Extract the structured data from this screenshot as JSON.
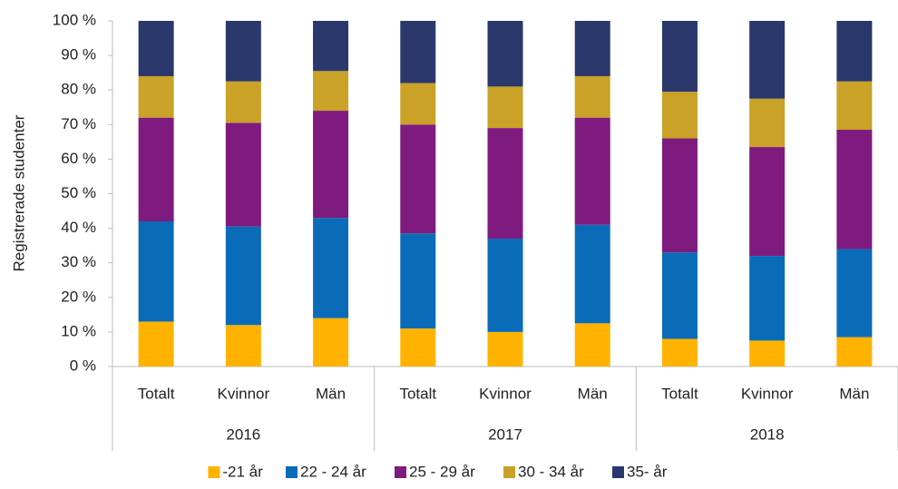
{
  "chart_data": {
    "type": "stacked_bar",
    "ylabel": "Registrerade studenter",
    "categories": [
      "Totalt",
      "Kvinnor",
      "Män",
      "Totalt",
      "Kvinnor",
      "Män",
      "Totalt",
      "Kvinnor",
      "Män"
    ],
    "groups": [
      "2016",
      "2017",
      "2018"
    ],
    "series": [
      {
        "name": "-21 år",
        "color": "#ffb300",
        "values": [
          13,
          12,
          14,
          11,
          10,
          12.5,
          8,
          7.5,
          8.5
        ]
      },
      {
        "name": "22 - 24 år",
        "color": "#0a6cb8",
        "values": [
          29,
          28.5,
          29,
          27.5,
          27,
          28.5,
          25,
          24.5,
          25.5
        ]
      },
      {
        "name": "25 - 29 år",
        "color": "#7f1a7f",
        "values": [
          30,
          30,
          31,
          31.5,
          32,
          31,
          33,
          31.5,
          34.5
        ]
      },
      {
        "name": "30 - 34 år",
        "color": "#c9a227",
        "values": [
          12,
          12,
          11.5,
          12,
          12,
          12,
          13.5,
          14,
          14
        ]
      },
      {
        "name": "35- år",
        "color": "#2a386b",
        "values": [
          16,
          17.5,
          14.5,
          18,
          19,
          16,
          20.5,
          22.5,
          17.5
        ]
      }
    ],
    "ylim": [
      0,
      100
    ],
    "yticks": [
      {
        "value": 0,
        "label": "0 %"
      },
      {
        "value": 10,
        "label": "10 %"
      },
      {
        "value": 20,
        "label": "20 %"
      },
      {
        "value": 30,
        "label": "30 %"
      },
      {
        "value": 40,
        "label": "40 %"
      },
      {
        "value": 50,
        "label": "50 %"
      },
      {
        "value": 60,
        "label": "60 %"
      },
      {
        "value": 70,
        "label": "70 %"
      },
      {
        "value": 80,
        "label": "80 %"
      },
      {
        "value": 90,
        "label": "90 %"
      },
      {
        "value": 100,
        "label": "100 %"
      }
    ],
    "legend": "bottom"
  }
}
